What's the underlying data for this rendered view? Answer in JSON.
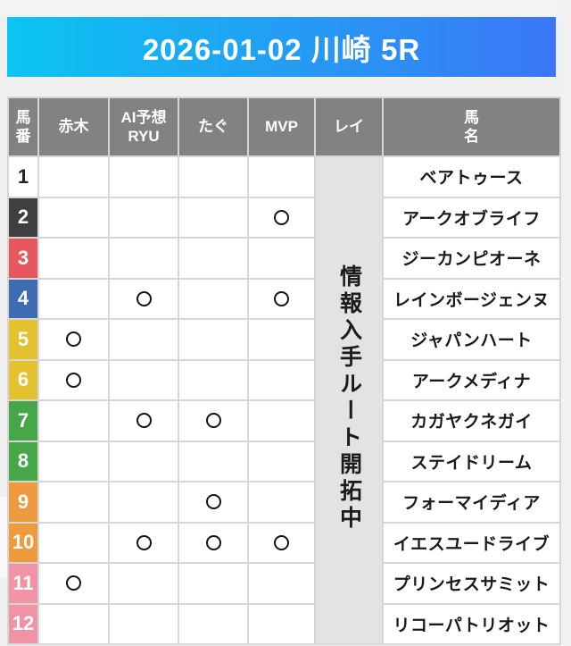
{
  "banner": {
    "title": "2026-01-02 川崎 5R",
    "gradient_from": "#0bc5f2",
    "gradient_to": "#3b76f6",
    "text_color": "#ffffff"
  },
  "table": {
    "header_bg": "#828282",
    "header_text_color": "#ffffff",
    "grid_line_color": "#d6d6d6",
    "columns": [
      {
        "key": "num",
        "label": "馬\n番"
      },
      {
        "key": "akagi",
        "label": "赤木"
      },
      {
        "key": "ai",
        "label": "AI予想\nRYU"
      },
      {
        "key": "tagu",
        "label": "たぐ"
      },
      {
        "key": "mvp",
        "label": "MVP"
      },
      {
        "key": "rei",
        "label": "レイ"
      },
      {
        "key": "name",
        "label": "馬\n名"
      }
    ],
    "mark_symbol": "〇",
    "rei_notice": {
      "text": "情報入手ルート開拓中",
      "bg": "#e3e3e3",
      "text_color": "#1b1b1b"
    },
    "rows": [
      {
        "num": "1",
        "num_bg": "#ffffff",
        "num_text_color": "#262626",
        "marks": [],
        "name": "ベアトゥース"
      },
      {
        "num": "2",
        "num_bg": "#3f3f3f",
        "num_text_color": "#ffffff",
        "marks": [
          "mvp"
        ],
        "name": "アークオブライフ"
      },
      {
        "num": "3",
        "num_bg": "#e8575f",
        "num_text_color": "#ffffff",
        "marks": [],
        "name": "ジーカンピオーネ"
      },
      {
        "num": "4",
        "num_bg": "#3d6cb5",
        "num_text_color": "#ffffff",
        "marks": [
          "ai",
          "mvp"
        ],
        "name": "レインボージェンヌ"
      },
      {
        "num": "5",
        "num_bg": "#e4c12f",
        "num_text_color": "#ffffff",
        "marks": [
          "akagi"
        ],
        "name": "ジャパンハート"
      },
      {
        "num": "6",
        "num_bg": "#e4c12f",
        "num_text_color": "#ffffff",
        "marks": [
          "akagi"
        ],
        "name": "アークメディナ"
      },
      {
        "num": "7",
        "num_bg": "#47a647",
        "num_text_color": "#ffffff",
        "marks": [
          "ai",
          "tagu"
        ],
        "name": "カガヤクネガイ"
      },
      {
        "num": "8",
        "num_bg": "#47a647",
        "num_text_color": "#ffffff",
        "marks": [],
        "name": "ステイドリーム"
      },
      {
        "num": "9",
        "num_bg": "#ee9a3e",
        "num_text_color": "#ffffff",
        "marks": [
          "tagu"
        ],
        "name": "フォーマイディア"
      },
      {
        "num": "10",
        "num_bg": "#ee9a3e",
        "num_text_color": "#ffffff",
        "marks": [
          "ai",
          "tagu",
          "mvp"
        ],
        "name": "イエスユードライブ"
      },
      {
        "num": "11",
        "num_bg": "#ef93a5",
        "num_text_color": "#ffffff",
        "marks": [
          "akagi"
        ],
        "name": "プリンセスサミット"
      },
      {
        "num": "12",
        "num_bg": "#ef93a5",
        "num_text_color": "#ffffff",
        "marks": [],
        "name": "リコーパトリオット"
      }
    ]
  }
}
